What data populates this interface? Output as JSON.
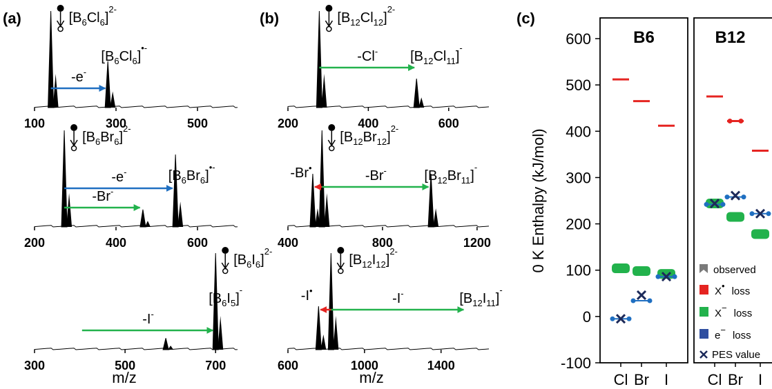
{
  "panel_labels": {
    "a": "(a)",
    "b": "(b)",
    "c": "(c)"
  },
  "colors": {
    "blue": "#1f6fc1",
    "green": "#22b24c",
    "red": "#e52421",
    "ms_green": "#77c043",
    "ms_blue": "#2f4ea0",
    "black": "#000000"
  },
  "chart_data": [
    {
      "type": "line",
      "panel": "(a)",
      "xlabel": "m/z",
      "spectra": [
        {
          "name": "B6Cl6",
          "xlim": [
            100,
            600
          ],
          "xticks": [
            "100",
            "300",
            "500"
          ],
          "peaks": [
            {
              "x": 140,
              "h": 1.0
            },
            {
              "x": 280,
              "h": 0.48
            }
          ],
          "parent_label": {
            "main": "[B",
            "s1": "6",
            "m2": "Cl",
            "s2": "6",
            "m3": "]",
            "sup": "2-"
          },
          "product_label": {
            "main": "[B",
            "s1": "6",
            "m2": "Cl",
            "s2": "6",
            "m3": "]",
            "sup": "•-"
          },
          "arrows": [
            {
              "label": "-e",
              "label_sup": "-",
              "from": 140,
              "to": 277,
              "color": "blue"
            }
          ]
        },
        {
          "name": "B6Br6",
          "xlim": [
            200,
            700
          ],
          "xticks": [
            "200",
            "400",
            "600"
          ],
          "peaks": [
            {
              "x": 273,
              "h": 1.0
            },
            {
              "x": 546,
              "h": 0.75
            },
            {
              "x": 466,
              "h": 0.18
            }
          ],
          "parent_label": {
            "main": "[B",
            "s1": "6",
            "m2": "Br",
            "s2": "6",
            "m3": "]",
            "sup": "2-"
          },
          "product_label": {
            "main": "[B",
            "s1": "6",
            "m2": "Br",
            "s2": "6",
            "m3": "]",
            "sup": "•-"
          },
          "arrows": [
            {
              "label": "-e",
              "label_sup": "-",
              "from": 273,
              "to": 542,
              "color": "blue"
            },
            {
              "label": "-Br",
              "label_sup": "-",
              "from": 273,
              "to": 462,
              "color": "green"
            }
          ]
        },
        {
          "name": "B6I6",
          "xlim": [
            300,
            750
          ],
          "xticks": [
            "300",
            "500",
            "700"
          ],
          "peaks": [
            {
              "x": 700,
              "h": 1.0
            },
            {
              "x": 590,
              "h": 0.12
            }
          ],
          "parent_label": {
            "main": "[B",
            "s1": "6",
            "m2": "I",
            "s2": "6",
            "m3": "]",
            "sup": "2-"
          },
          "product_label": {
            "main": "[B",
            "s1": "6",
            "m2": "I",
            "s2": "5",
            "m3": "]",
            "sup": "-"
          },
          "arrows": [
            {
              "label": "-I",
              "label_sup": "-",
              "from": 405,
              "to": 697,
              "color": "green"
            }
          ]
        }
      ]
    },
    {
      "type": "line",
      "panel": "(b)",
      "xlabel": "m/z",
      "spectra": [
        {
          "name": "B12Cl12",
          "xlim": [
            200,
            700
          ],
          "xticks": [
            "200",
            "400",
            "600"
          ],
          "peaks": [
            {
              "x": 278,
              "h": 1.0
            },
            {
              "x": 520,
              "h": 0.3
            }
          ],
          "parent_label": {
            "main": "[B",
            "s1": "12",
            "m2": "Cl",
            "s2": "12",
            "m3": "]",
            "sup": "2-"
          },
          "product_label": {
            "main": "[B",
            "s1": "12",
            "m2": "Cl",
            "s2": "11",
            "m3": "]",
            "sup": "-"
          },
          "arrows": [
            {
              "label": "-Cl",
              "label_sup": "-",
              "from": 278,
              "to": 518,
              "color": "green"
            }
          ]
        },
        {
          "name": "B12Br12",
          "xlim": [
            400,
            1250
          ],
          "xticks": [
            "400",
            "800",
            "1200"
          ],
          "peaks": [
            {
              "x": 544,
              "h": 1.0
            },
            {
              "x": 505,
              "h": 0.55
            },
            {
              "x": 1005,
              "h": 0.55
            }
          ],
          "parent_label": {
            "main": "[B",
            "s1": "12",
            "m2": "Br",
            "s2": "12",
            "m3": "]",
            "sup": "2-"
          },
          "product_label": {
            "main": "[B",
            "s1": "12",
            "m2": "Br",
            "s2": "11",
            "m3": "]",
            "sup": "-"
          },
          "arrows": [
            {
              "label": "-Br",
              "label_sup": "-",
              "from": 544,
              "to": 1000,
              "color": "green"
            },
            {
              "label": "-Br",
              "label_sup": "•",
              "from": 544,
              "to": 508,
              "color": "red"
            }
          ]
        },
        {
          "name": "B12I12",
          "xlim": [
            600,
            1650
          ],
          "xticks": [
            "600",
            "1000",
            "1400"
          ],
          "peaks": [
            {
              "x": 825,
              "h": 1.0
            },
            {
              "x": 760,
              "h": 0.45
            }
          ],
          "parent_label": {
            "main": "[B",
            "s1": "12",
            "m2": "I",
            "s2": "12",
            "m3": "]",
            "sup": "2-"
          },
          "product_label": {
            "main": "[B",
            "s1": "12",
            "m2": "I",
            "s2": "11",
            "m3": "]",
            "sup": "-"
          },
          "arrows": [
            {
              "label": "-I",
              "label_sup": "-",
              "from": 825,
              "to": 1525,
              "color": "green"
            },
            {
              "label": "-I",
              "label_sup": "•",
              "from": 825,
              "to": 763,
              "color": "red"
            }
          ]
        }
      ]
    },
    {
      "type": "scatter",
      "panel": "(c)",
      "ylabel": "0 K Enthalpy (kJ/mol)",
      "ylim": [
        -100,
        600
      ],
      "yticks": [
        "-100",
        "0",
        "100",
        "200",
        "300",
        "400",
        "500",
        "600"
      ],
      "categories": [
        "Cl",
        "Br",
        "I"
      ],
      "subplots": [
        {
          "title": "B6",
          "series": [
            {
              "name": "X• loss",
              "color": "red",
              "values": [
                512,
                465,
                412
              ]
            },
            {
              "name": "X− loss",
              "color": "green",
              "values": [
                104,
                98,
                92
              ]
            },
            {
              "name": "e− loss",
              "color": "blue",
              "values": [
                -5,
                34,
                86
              ]
            }
          ],
          "pes": [
            -5,
            46,
            86
          ]
        },
        {
          "title": "B12",
          "series": [
            {
              "name": "X• loss",
              "color": "red",
              "values": [
                475,
                422,
                358
              ]
            },
            {
              "name": "X− loss",
              "color": "green",
              "values": [
                244,
                215,
                178
              ]
            },
            {
              "name": "e− loss",
              "color": "blue",
              "values": [
                242,
                258,
                222
              ]
            }
          ],
          "pes": [
            244,
            261,
            222
          ]
        }
      ],
      "legend": {
        "observed": "observed",
        "x_rad_loss": "X",
        "x_rad_sup": "•",
        "x_anion_loss": "X",
        "x_anion_sup": "−",
        "e_loss": "e",
        "e_sup": "−",
        "loss_word": "loss",
        "pes": "PES value"
      }
    }
  ]
}
